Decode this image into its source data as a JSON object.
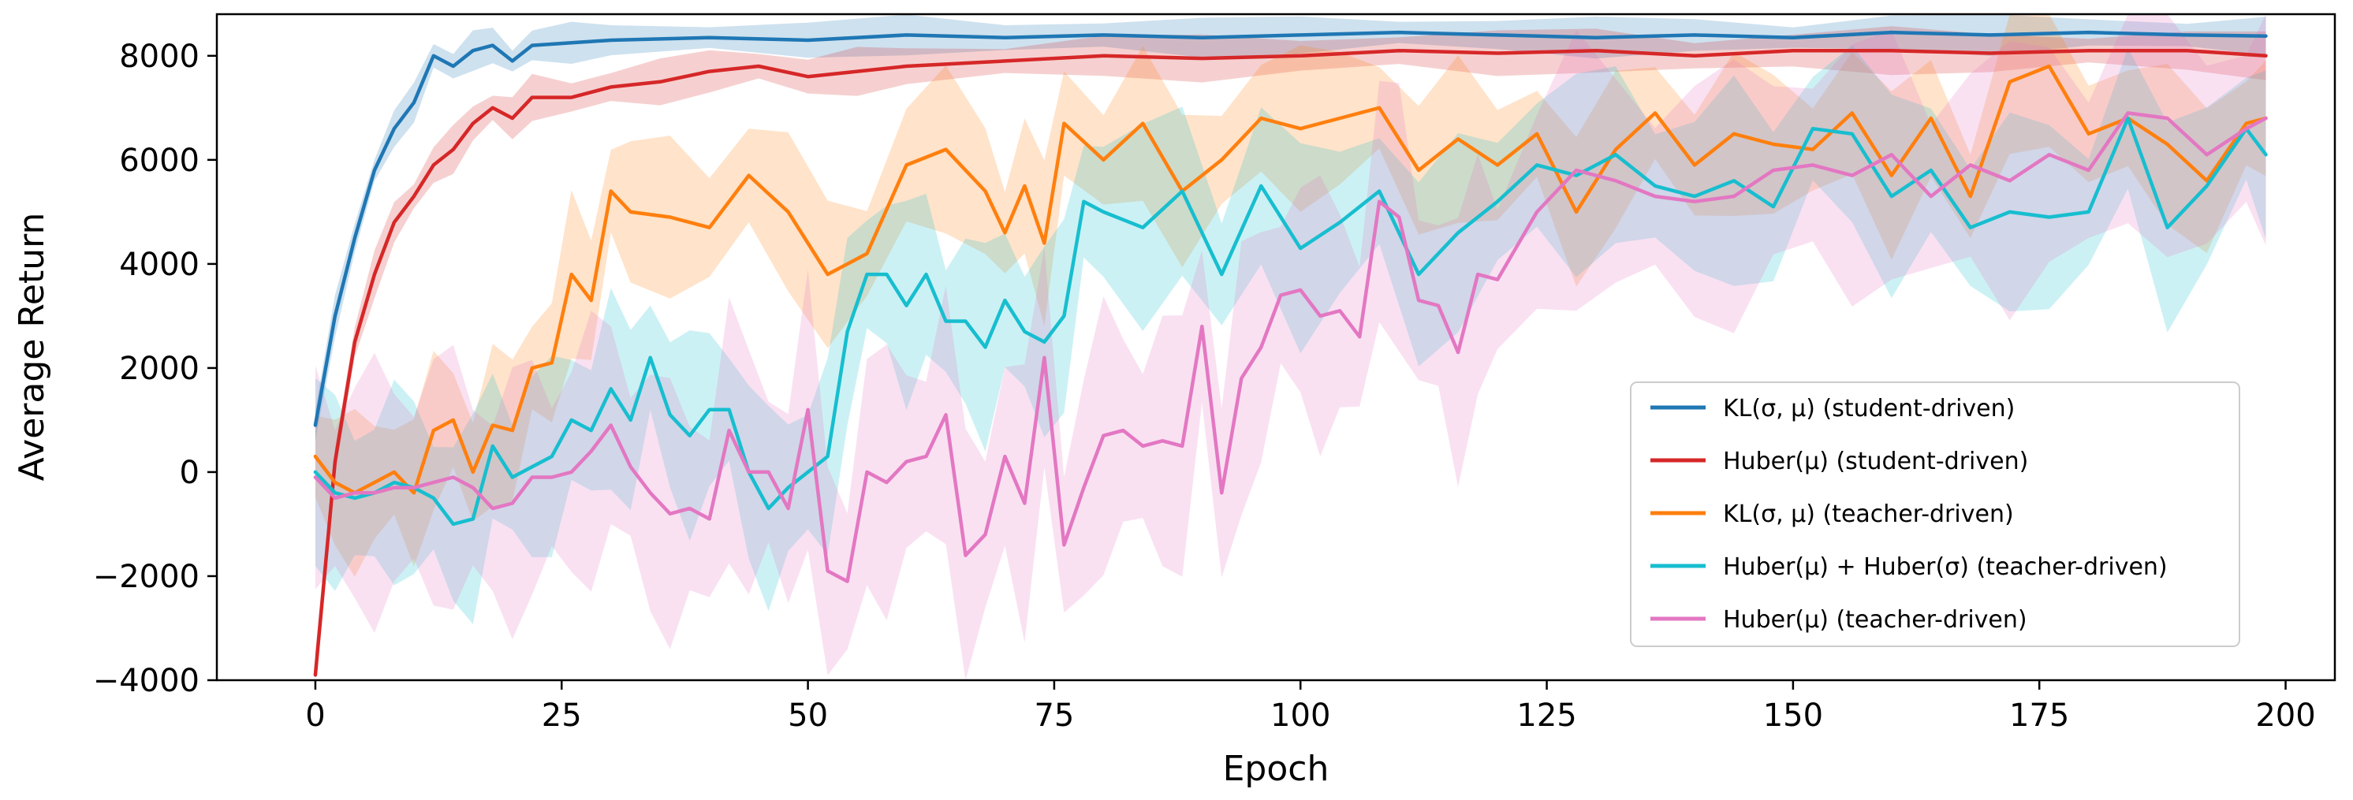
{
  "chart_data": {
    "type": "line",
    "title": "",
    "xlabel": "Epoch",
    "ylabel": "Average Return",
    "xlim": [
      -10,
      205
    ],
    "ylim": [
      -4000,
      8800
    ],
    "xticks": [
      0,
      25,
      50,
      75,
      100,
      125,
      150,
      175,
      200
    ],
    "yticks": [
      -4000,
      -2000,
      0,
      2000,
      4000,
      6000,
      8000
    ],
    "ytick_labels": [
      "−4000",
      "−2000",
      "0",
      "2000",
      "4000",
      "6000",
      "8000"
    ],
    "legend_position": "lower-right",
    "series": [
      {
        "name": "KL(σ, μ) (student-driven)",
        "color": "#1f77b4",
        "x": [
          0,
          2,
          4,
          6,
          8,
          10,
          12,
          14,
          16,
          18,
          20,
          22,
          26,
          30,
          40,
          50,
          60,
          70,
          80,
          90,
          100,
          110,
          120,
          130,
          140,
          150,
          160,
          170,
          180,
          190,
          198
        ],
        "y": [
          900,
          3000,
          4500,
          5800,
          6600,
          7100,
          8000,
          7800,
          8100,
          8200,
          7900,
          8200,
          8250,
          8300,
          8350,
          8300,
          8400,
          8350,
          8400,
          8350,
          8400,
          8450,
          8400,
          8350,
          8400,
          8350,
          8450,
          8400,
          8450,
          8400,
          8380
        ],
        "spread": 300
      },
      {
        "name": "Huber(μ) (student-driven)",
        "color": "#d62728",
        "x": [
          0,
          2,
          4,
          6,
          8,
          10,
          12,
          14,
          16,
          18,
          20,
          22,
          26,
          30,
          35,
          40,
          45,
          50,
          55,
          60,
          70,
          80,
          90,
          100,
          110,
          120,
          130,
          140,
          150,
          160,
          170,
          180,
          190,
          198
        ],
        "y": [
          -3900,
          200,
          2500,
          3800,
          4800,
          5300,
          5900,
          6200,
          6700,
          7000,
          6800,
          7200,
          7200,
          7400,
          7500,
          7700,
          7800,
          7600,
          7700,
          7800,
          7900,
          8000,
          7950,
          8000,
          8100,
          8050,
          8100,
          8000,
          8100,
          8100,
          8050,
          8100,
          8100,
          8000
        ],
        "spread": 350
      },
      {
        "name": "KL(σ, μ) (teacher-driven)",
        "color": "#ff7f0e",
        "x": [
          0,
          2,
          4,
          6,
          8,
          10,
          12,
          14,
          16,
          18,
          20,
          22,
          24,
          26,
          28,
          30,
          32,
          36,
          40,
          44,
          48,
          52,
          56,
          60,
          64,
          68,
          70,
          72,
          74,
          76,
          80,
          84,
          88,
          92,
          96,
          100,
          104,
          108,
          112,
          116,
          120,
          124,
          128,
          132,
          136,
          140,
          144,
          148,
          152,
          156,
          160,
          164,
          168,
          172,
          176,
          180,
          184,
          188,
          192,
          196,
          198
        ],
        "y": [
          300,
          -200,
          -400,
          -200,
          0,
          -400,
          800,
          1000,
          0,
          900,
          800,
          2000,
          2100,
          3800,
          3300,
          5400,
          5000,
          4900,
          4700,
          5700,
          5000,
          3800,
          4200,
          5900,
          6200,
          5400,
          4600,
          5500,
          4400,
          6700,
          6000,
          6700,
          5400,
          6000,
          6800,
          6600,
          6800,
          7000,
          5800,
          6400,
          5900,
          6500,
          5000,
          6200,
          6900,
          5900,
          6500,
          6300,
          6200,
          6900,
          5700,
          6800,
          5300,
          7500,
          7800,
          6500,
          6800,
          6300,
          5600,
          6700,
          6800
        ],
        "spread": 1200
      },
      {
        "name": "Huber(μ) + Huber(σ) (teacher-driven)",
        "color": "#17becf",
        "x": [
          0,
          2,
          4,
          6,
          8,
          10,
          12,
          14,
          16,
          18,
          20,
          22,
          24,
          26,
          28,
          30,
          32,
          34,
          36,
          38,
          40,
          42,
          44,
          46,
          48,
          50,
          52,
          54,
          56,
          58,
          60,
          62,
          64,
          66,
          68,
          70,
          72,
          74,
          76,
          78,
          80,
          84,
          88,
          92,
          96,
          100,
          104,
          108,
          112,
          116,
          120,
          124,
          128,
          132,
          136,
          140,
          144,
          148,
          152,
          156,
          160,
          164,
          168,
          172,
          176,
          180,
          184,
          188,
          192,
          196,
          198
        ],
        "y": [
          0,
          -400,
          -500,
          -400,
          -200,
          -300,
          -500,
          -1000,
          -900,
          500,
          -100,
          100,
          300,
          1000,
          800,
          1600,
          1000,
          2200,
          1100,
          700,
          1200,
          1200,
          0,
          -700,
          -300,
          0,
          300,
          2700,
          3800,
          3800,
          3200,
          3800,
          2900,
          2900,
          2400,
          3300,
          2700,
          2500,
          3000,
          5200,
          5000,
          4700,
          5400,
          3800,
          5500,
          4300,
          4800,
          5400,
          3800,
          4600,
          5200,
          5900,
          5700,
          6100,
          5500,
          5300,
          5600,
          5100,
          6600,
          6500,
          5300,
          5800,
          4700,
          5000,
          4900,
          5000,
          6800,
          4700,
          5500,
          6600,
          6100
        ],
        "spread": 1500
      },
      {
        "name": "Huber(μ) (teacher-driven)",
        "color": "#e377c2",
        "x": [
          0,
          2,
          4,
          6,
          8,
          10,
          12,
          14,
          16,
          18,
          20,
          22,
          24,
          26,
          28,
          30,
          32,
          34,
          36,
          38,
          40,
          42,
          44,
          46,
          48,
          50,
          52,
          54,
          56,
          58,
          60,
          62,
          64,
          66,
          68,
          70,
          72,
          74,
          76,
          78,
          80,
          82,
          84,
          86,
          88,
          90,
          92,
          94,
          96,
          98,
          100,
          102,
          104,
          106,
          108,
          110,
          112,
          114,
          116,
          118,
          120,
          124,
          128,
          132,
          136,
          140,
          144,
          148,
          152,
          156,
          160,
          164,
          168,
          172,
          176,
          180,
          184,
          188,
          192,
          196,
          198
        ],
        "y": [
          -100,
          -500,
          -400,
          -400,
          -300,
          -300,
          -200,
          -100,
          -300,
          -700,
          -600,
          -100,
          -100,
          0,
          400,
          900,
          100,
          -400,
          -800,
          -700,
          -900,
          800,
          0,
          0,
          -700,
          1200,
          -1900,
          -2100,
          0,
          -200,
          200,
          300,
          1100,
          -1600,
          -1200,
          300,
          -600,
          2200,
          -1400,
          -300,
          700,
          800,
          500,
          600,
          500,
          2800,
          -400,
          1800,
          2400,
          3400,
          3500,
          3000,
          3100,
          2600,
          5200,
          4900,
          3300,
          3200,
          2300,
          3800,
          3700,
          5000,
          5800,
          5600,
          5300,
          5200,
          5300,
          5800,
          5900,
          5700,
          6100,
          5300,
          5900,
          5600,
          6100,
          5800,
          6900,
          6800,
          6100,
          6600,
          6800
        ],
        "spread": 2000
      }
    ]
  }
}
